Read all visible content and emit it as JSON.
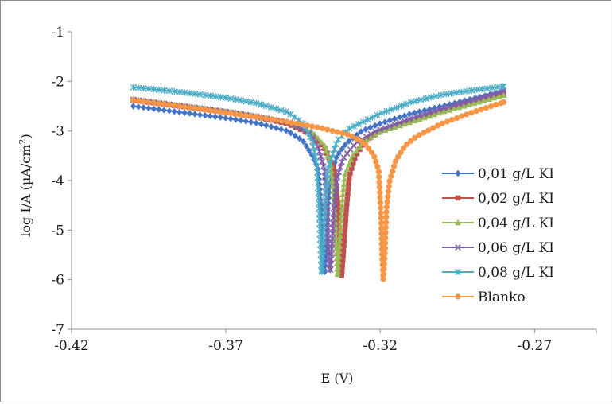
{
  "chart_data": {
    "type": "line",
    "xlabel": "E (V)",
    "ylabel": "log I/A (µA/cm²)",
    "xlim": [
      -0.42,
      -0.25
    ],
    "ylim": [
      -7,
      -1
    ],
    "x_ticks": [
      -0.42,
      -0.37,
      -0.32,
      -0.27
    ],
    "x_tick_labels": [
      "-0.42",
      "-0.37",
      "-0.32",
      "-0.27"
    ],
    "y_ticks": [
      -1,
      -2,
      -3,
      -4,
      -5,
      -6,
      -7
    ],
    "y_tick_labels": [
      "-1",
      "-2",
      "-3",
      "-4",
      "-5",
      "-6",
      "-7"
    ],
    "grid": false,
    "legend_position": "right",
    "series": [
      {
        "name": "0,01 g/L KI",
        "color": "#4472c4",
        "marker": "diamond",
        "points": [
          [
            -0.4,
            -2.5
          ],
          [
            -0.39,
            -2.58
          ],
          [
            -0.38,
            -2.66
          ],
          [
            -0.37,
            -2.74
          ],
          [
            -0.36,
            -2.84
          ],
          [
            -0.35,
            -3.0
          ],
          [
            -0.345,
            -3.2
          ],
          [
            -0.342,
            -3.5
          ],
          [
            -0.34,
            -3.8
          ],
          [
            -0.339,
            -4.6
          ],
          [
            -0.3385,
            -5.5
          ],
          [
            -0.338,
            -5.88
          ],
          [
            -0.3375,
            -5.5
          ],
          [
            -0.337,
            -4.6
          ],
          [
            -0.336,
            -3.9
          ],
          [
            -0.334,
            -3.5
          ],
          [
            -0.331,
            -3.25
          ],
          [
            -0.326,
            -3.0
          ],
          [
            -0.32,
            -2.85
          ],
          [
            -0.31,
            -2.65
          ],
          [
            -0.3,
            -2.5
          ],
          [
            -0.29,
            -2.35
          ],
          [
            -0.28,
            -2.2
          ]
        ]
      },
      {
        "name": "0,02 g/L KI",
        "color": "#c0504d",
        "marker": "square",
        "points": [
          [
            -0.4,
            -2.38
          ],
          [
            -0.39,
            -2.46
          ],
          [
            -0.38,
            -2.54
          ],
          [
            -0.37,
            -2.62
          ],
          [
            -0.36,
            -2.72
          ],
          [
            -0.35,
            -2.85
          ],
          [
            -0.343,
            -3.05
          ],
          [
            -0.338,
            -3.35
          ],
          [
            -0.335,
            -3.75
          ],
          [
            -0.3335,
            -4.6
          ],
          [
            -0.333,
            -5.5
          ],
          [
            -0.3325,
            -5.92
          ],
          [
            -0.332,
            -5.5
          ],
          [
            -0.331,
            -4.6
          ],
          [
            -0.33,
            -3.9
          ],
          [
            -0.328,
            -3.5
          ],
          [
            -0.325,
            -3.2
          ],
          [
            -0.32,
            -3.0
          ],
          [
            -0.31,
            -2.8
          ],
          [
            -0.3,
            -2.6
          ],
          [
            -0.29,
            -2.42
          ],
          [
            -0.28,
            -2.25
          ]
        ]
      },
      {
        "name": "0,04 g/L KI",
        "color": "#9bbb59",
        "marker": "triangle",
        "points": [
          [
            -0.4,
            -2.36
          ],
          [
            -0.39,
            -2.44
          ],
          [
            -0.38,
            -2.52
          ],
          [
            -0.37,
            -2.6
          ],
          [
            -0.36,
            -2.7
          ],
          [
            -0.35,
            -2.82
          ],
          [
            -0.342,
            -3.02
          ],
          [
            -0.338,
            -3.3
          ],
          [
            -0.336,
            -3.7
          ],
          [
            -0.3348,
            -4.6
          ],
          [
            -0.3342,
            -5.5
          ],
          [
            -0.3338,
            -5.92
          ],
          [
            -0.3333,
            -5.5
          ],
          [
            -0.3325,
            -4.6
          ],
          [
            -0.3315,
            -3.9
          ],
          [
            -0.329,
            -3.5
          ],
          [
            -0.325,
            -3.2
          ],
          [
            -0.32,
            -3.02
          ],
          [
            -0.31,
            -2.82
          ],
          [
            -0.3,
            -2.62
          ],
          [
            -0.29,
            -2.45
          ],
          [
            -0.28,
            -2.28
          ]
        ]
      },
      {
        "name": "0,06 g/L KI",
        "color": "#7f5fa8",
        "marker": "x",
        "points": [
          [
            -0.4,
            -2.37
          ],
          [
            -0.39,
            -2.45
          ],
          [
            -0.38,
            -2.53
          ],
          [
            -0.37,
            -2.61
          ],
          [
            -0.36,
            -2.71
          ],
          [
            -0.35,
            -2.83
          ],
          [
            -0.343,
            -3.03
          ],
          [
            -0.34,
            -3.35
          ],
          [
            -0.338,
            -3.8
          ],
          [
            -0.3372,
            -4.6
          ],
          [
            -0.3366,
            -5.5
          ],
          [
            -0.3362,
            -5.85
          ],
          [
            -0.3358,
            -5.5
          ],
          [
            -0.335,
            -4.6
          ],
          [
            -0.334,
            -3.95
          ],
          [
            -0.332,
            -3.55
          ],
          [
            -0.328,
            -3.25
          ],
          [
            -0.322,
            -3.02
          ],
          [
            -0.31,
            -2.75
          ],
          [
            -0.3,
            -2.55
          ],
          [
            -0.29,
            -2.38
          ],
          [
            -0.28,
            -2.2
          ]
        ]
      },
      {
        "name": "0,08 g/L KI",
        "color": "#4bacc6",
        "marker": "star",
        "points": [
          [
            -0.4,
            -2.12
          ],
          [
            -0.39,
            -2.18
          ],
          [
            -0.38,
            -2.25
          ],
          [
            -0.37,
            -2.33
          ],
          [
            -0.36,
            -2.44
          ],
          [
            -0.35,
            -2.62
          ],
          [
            -0.345,
            -2.85
          ],
          [
            -0.342,
            -3.2
          ],
          [
            -0.3405,
            -3.7
          ],
          [
            -0.3398,
            -4.6
          ],
          [
            -0.3393,
            -5.5
          ],
          [
            -0.339,
            -5.88
          ],
          [
            -0.3386,
            -5.5
          ],
          [
            -0.338,
            -4.6
          ],
          [
            -0.337,
            -3.8
          ],
          [
            -0.334,
            -3.2
          ],
          [
            -0.33,
            -2.95
          ],
          [
            -0.325,
            -2.8
          ],
          [
            -0.32,
            -2.65
          ],
          [
            -0.31,
            -2.42
          ],
          [
            -0.3,
            -2.27
          ],
          [
            -0.29,
            -2.18
          ],
          [
            -0.28,
            -2.1
          ]
        ]
      },
      {
        "name": "Blanko",
        "color": "#f79646",
        "marker": "circle",
        "points": [
          [
            -0.4,
            -2.38
          ],
          [
            -0.39,
            -2.46
          ],
          [
            -0.38,
            -2.54
          ],
          [
            -0.37,
            -2.63
          ],
          [
            -0.36,
            -2.72
          ],
          [
            -0.35,
            -2.82
          ],
          [
            -0.34,
            -2.93
          ],
          [
            -0.33,
            -3.08
          ],
          [
            -0.325,
            -3.25
          ],
          [
            -0.322,
            -3.5
          ],
          [
            -0.3205,
            -3.8
          ],
          [
            -0.3198,
            -4.6
          ],
          [
            -0.3194,
            -5.5
          ],
          [
            -0.319,
            -6.0
          ],
          [
            -0.3185,
            -5.5
          ],
          [
            -0.318,
            -4.6
          ],
          [
            -0.317,
            -4.02
          ],
          [
            -0.315,
            -3.6
          ],
          [
            -0.312,
            -3.3
          ],
          [
            -0.308,
            -3.1
          ],
          [
            -0.3,
            -2.85
          ],
          [
            -0.29,
            -2.62
          ],
          [
            -0.28,
            -2.42
          ]
        ]
      }
    ]
  }
}
